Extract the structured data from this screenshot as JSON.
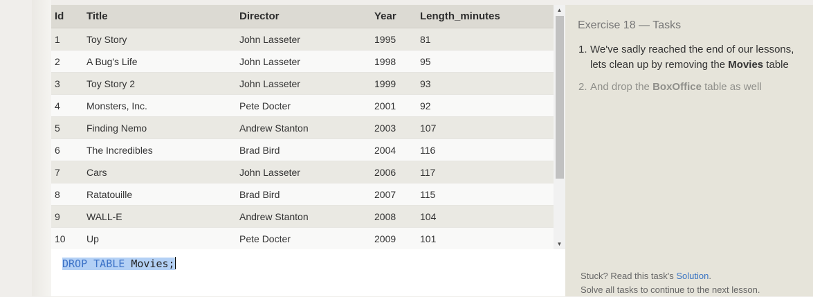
{
  "results": {
    "columns": [
      "Id",
      "Title",
      "Director",
      "Year",
      "Length_minutes"
    ],
    "rows": [
      [
        "1",
        "Toy Story",
        "John Lasseter",
        "1995",
        "81"
      ],
      [
        "2",
        "A Bug's Life",
        "John Lasseter",
        "1998",
        "95"
      ],
      [
        "3",
        "Toy Story 2",
        "John Lasseter",
        "1999",
        "93"
      ],
      [
        "4",
        "Monsters, Inc.",
        "Pete Docter",
        "2001",
        "92"
      ],
      [
        "5",
        "Finding Nemo",
        "Andrew Stanton",
        "2003",
        "107"
      ],
      [
        "6",
        "The Incredibles",
        "Brad Bird",
        "2004",
        "116"
      ],
      [
        "7",
        "Cars",
        "John Lasseter",
        "2006",
        "117"
      ],
      [
        "8",
        "Ratatouille",
        "Brad Bird",
        "2007",
        "115"
      ],
      [
        "9",
        "WALL-E",
        "Andrew Stanton",
        "2008",
        "104"
      ],
      [
        "10",
        "Up",
        "Pete Docter",
        "2009",
        "101"
      ]
    ]
  },
  "editor": {
    "keyword": "DROP TABLE",
    "rest": " Movies;"
  },
  "tasks": {
    "title": "Exercise 18 — Tasks",
    "items": [
      {
        "number": "1.",
        "text_before": "We've sadly reached the end of our lessons, lets clean up by removing the ",
        "bold": "Movies",
        "text_after": " table"
      },
      {
        "number": "2.",
        "text_before": "And drop the ",
        "bold": "BoxOffice",
        "text_after": " table as well"
      }
    ]
  },
  "help": {
    "line1_prefix": "Stuck? Read this task's ",
    "solution_link": "Solution",
    "line1_suffix": ".",
    "line2": "Solve all tasks to continue to the next lesson."
  },
  "icons": {
    "scroll_up": "triangle-up",
    "scroll_down": "triangle-down"
  }
}
